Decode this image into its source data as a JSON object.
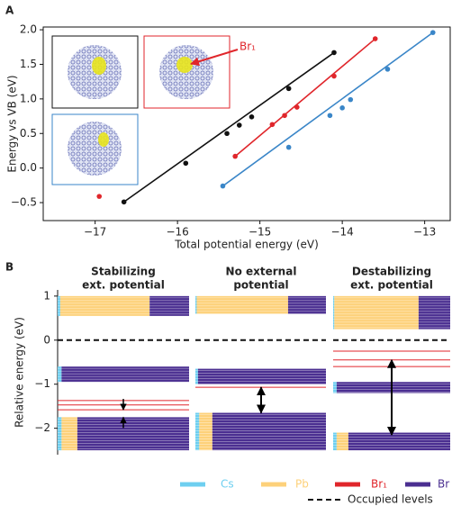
{
  "chart_data": [
    {
      "type": "scatter",
      "panel_label": "A",
      "xlabel": "Total potential energy (eV)",
      "ylabel": "Energy vs VB (eV)",
      "xlim": [
        -17.63,
        -12.69
      ],
      "ylim": [
        -0.76,
        2.04
      ],
      "xticks": [
        {
          "value": -17,
          "label": "−17"
        },
        {
          "value": -16,
          "label": "−16"
        },
        {
          "value": -15,
          "label": "−15"
        },
        {
          "value": -14,
          "label": "−14"
        },
        {
          "value": -13,
          "label": "−13"
        }
      ],
      "yticks": [
        {
          "value": -0.5,
          "label": "−0.5"
        },
        {
          "value": 0,
          "label": "0.0"
        },
        {
          "value": 0.5,
          "label": "0.5"
        },
        {
          "value": 1,
          "label": "1.0"
        },
        {
          "value": 1.5,
          "label": "1.5"
        },
        {
          "value": 2,
          "label": "2.0"
        }
      ],
      "series": [
        {
          "color": "#111111",
          "fit": true,
          "x": [
            -16.65,
            -15.9,
            -15.4,
            -15.25,
            -15.1,
            -14.65,
            -14.1
          ],
          "y": [
            -0.49,
            0.07,
            0.5,
            0.62,
            0.74,
            1.15,
            1.67
          ]
        },
        {
          "color": "#e0262b",
          "fit": true,
          "x": [
            -15.3,
            -14.85,
            -14.7,
            -14.55,
            -14.1,
            -13.6
          ],
          "y": [
            0.17,
            0.63,
            0.76,
            0.88,
            1.33,
            1.87
          ]
        },
        {
          "color": "#e0262b",
          "fit": false,
          "x": [
            -16.95
          ],
          "y": [
            -0.41
          ]
        },
        {
          "color": "#3a86c8",
          "fit": true,
          "x": [
            -15.45,
            -14.65,
            -14.15,
            -14.0,
            -13.9,
            -13.45,
            -12.9
          ],
          "y": [
            -0.26,
            0.3,
            0.76,
            0.87,
            0.99,
            1.43,
            1.96
          ]
        }
      ],
      "annotation": {
        "text": "Br₁",
        "color": "#e0262b"
      }
    },
    {
      "type": "levels",
      "panel_label": "B",
      "ylabel": "Relative energy (eV)",
      "ylim": [
        -2.6,
        1.14
      ],
      "yticks": [
        {
          "value": -2,
          "label": "−2"
        },
        {
          "value": -1,
          "label": "−1"
        },
        0,
        1
      ],
      "occupied_level": 0,
      "occupied_label": "Occupied levels",
      "species": [
        {
          "name": "Cs",
          "color": "#6ecff0"
        },
        {
          "name": "Pb",
          "color": "#fdd17a"
        },
        {
          "name": "Br₁",
          "color": "#e0262b"
        },
        {
          "name": "Br",
          "color": "#4b2f91"
        }
      ],
      "panels": [
        {
          "title": [
            "Stabilizing",
            "ext. potential"
          ],
          "arrow_style": "inward",
          "arrow": [
            -1.58,
            -1.75
          ],
          "bands": [
            {
              "from": 0.55,
              "to": 1.0,
              "fractions": [
                0.02,
                0.68,
                0,
                0.3
              ]
            },
            {
              "from": -0.95,
              "to": -0.6,
              "fractions": [
                0.03,
                0,
                0,
                0.97
              ]
            },
            {
              "from": -2.5,
              "to": -1.75,
              "fractions": [
                0.03,
                0.12,
                0,
                0.85
              ]
            }
          ],
          "levels": [
            -1.37,
            -1.47,
            -1.58
          ]
        },
        {
          "title": [
            "No external",
            "potential"
          ],
          "arrow_style": "double",
          "arrow": [
            -1.07,
            -1.65
          ],
          "bands": [
            {
              "from": 0.6,
              "to": 1.0,
              "fractions": [
                0.01,
                0.7,
                0,
                0.29
              ]
            },
            {
              "from": -1.0,
              "to": -0.65,
              "fractions": [
                0.02,
                0,
                0,
                0.98
              ]
            },
            {
              "from": -2.5,
              "to": -1.65,
              "fractions": [
                0.03,
                0.1,
                0,
                0.87
              ]
            }
          ],
          "levels": [
            -1.07
          ]
        },
        {
          "title": [
            "Destabilizing",
            "ext. potential"
          ],
          "arrow_style": "double",
          "arrow": [
            -0.45,
            -2.15
          ],
          "bands": [
            {
              "from": 0.25,
              "to": 1.0,
              "fractions": [
                0.01,
                0.72,
                0,
                0.27
              ]
            },
            {
              "from": -1.2,
              "to": -0.95,
              "fractions": [
                0.03,
                0,
                0,
                0.97
              ]
            },
            {
              "from": -2.5,
              "to": -2.1,
              "fractions": [
                0.03,
                0.1,
                0,
                0.87
              ]
            }
          ],
          "levels": [
            -0.25,
            -0.45,
            -0.6
          ]
        }
      ]
    }
  ]
}
